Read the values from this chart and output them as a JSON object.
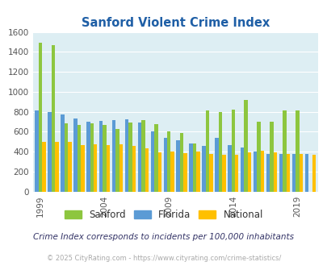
{
  "title": "Sanford Violent Crime Index",
  "subtitle": "Crime Index corresponds to incidents per 100,000 inhabitants",
  "footer": "© 2025 CityRating.com - https://www.cityrating.com/crime-statistics/",
  "years": [
    1999,
    2000,
    2001,
    2002,
    2003,
    2004,
    2005,
    2006,
    2007,
    2008,
    2009,
    2010,
    2011,
    2012,
    2013,
    2014,
    2015,
    2016,
    2017,
    2018,
    2019,
    2020
  ],
  "florida": [
    810,
    795,
    775,
    730,
    700,
    705,
    715,
    725,
    690,
    605,
    540,
    515,
    480,
    460,
    540,
    465,
    440,
    400,
    375,
    380,
    380,
    375
  ],
  "sanford": [
    1490,
    1470,
    680,
    665,
    680,
    670,
    625,
    695,
    720,
    675,
    600,
    585,
    480,
    815,
    800,
    825,
    920,
    700,
    700,
    810,
    810,
    0
  ],
  "national": [
    500,
    500,
    495,
    465,
    470,
    465,
    470,
    460,
    435,
    395,
    400,
    385,
    400,
    375,
    365,
    370,
    390,
    405,
    390,
    375,
    375,
    370
  ],
  "sanford_color": "#8dc63f",
  "florida_color": "#5b9bd5",
  "national_color": "#ffc000",
  "bg_color": "#ddeef3",
  "title_color": "#1f5fa6",
  "subtitle_color": "#333366",
  "footer_color": "#aaaaaa",
  "ylim": [
    0,
    1600
  ],
  "yticks": [
    0,
    200,
    400,
    600,
    800,
    1000,
    1200,
    1400,
    1600
  ],
  "xtick_years": [
    1999,
    2004,
    2009,
    2014,
    2019
  ],
  "bar_width": 0.28
}
